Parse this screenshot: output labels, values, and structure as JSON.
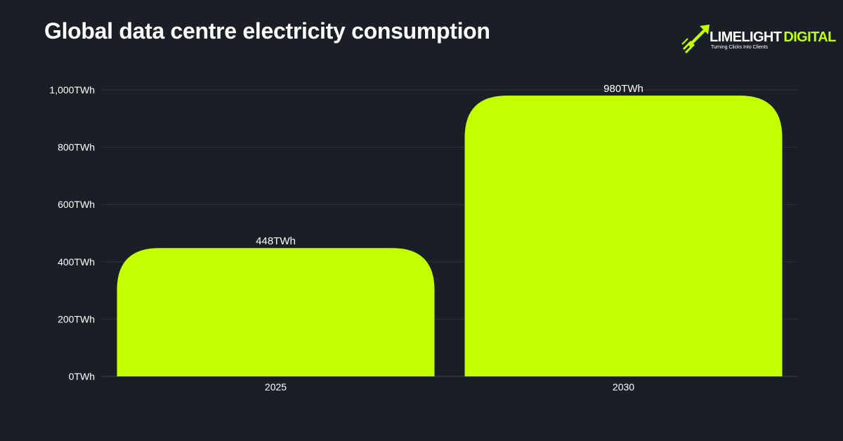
{
  "header": {
    "title": "Global data centre electricity consumption"
  },
  "logo": {
    "word_primary": "LIMELIGHT",
    "word_accent": "DIGITAL",
    "tagline": "Turning Clicks Into Clients",
    "icon": "rocket-arrow-icon"
  },
  "colors": {
    "background": "#1a1f27",
    "bar": "#c4ff00",
    "grid": "#2c323b",
    "text": "#ffffff"
  },
  "chart_data": {
    "type": "bar",
    "title": "Global data centre electricity consumption",
    "categories": [
      "2025",
      "2030"
    ],
    "values": [
      448,
      980
    ],
    "value_labels": [
      "448TWh",
      "980TWh"
    ],
    "unit": "TWh",
    "ylim": [
      0,
      1000
    ],
    "yticks": [
      0,
      200,
      400,
      600,
      800,
      1000
    ],
    "ytick_labels": [
      "0TWh",
      "200TWh",
      "400TWh",
      "600TWh",
      "800TWh",
      "1,000TWh"
    ],
    "xlabel": "",
    "ylabel": "",
    "grid": true,
    "legend": "none"
  }
}
